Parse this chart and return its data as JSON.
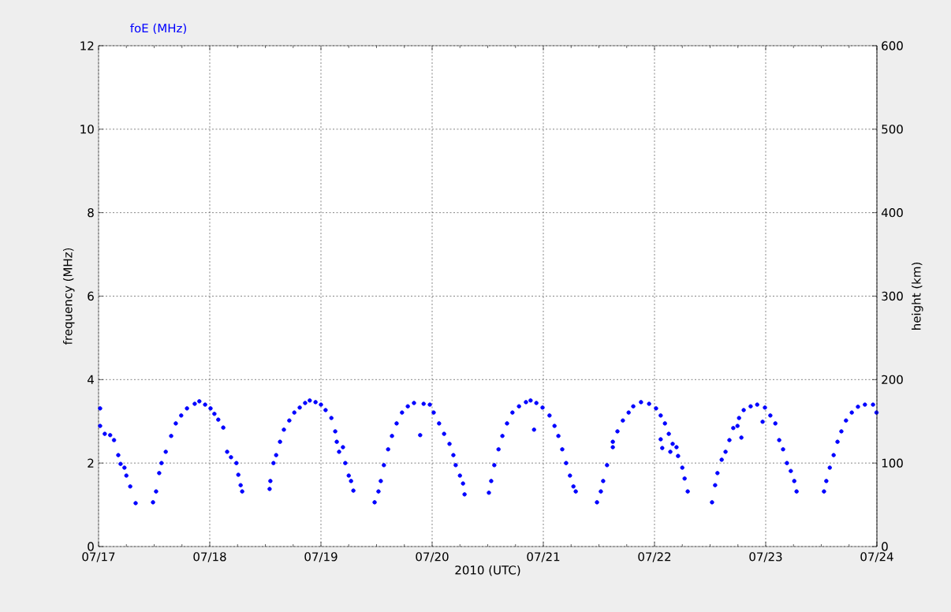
{
  "chart_data": {
    "type": "scatter",
    "xlabel": "2010 (UTC)",
    "ylabel": "frequency (MHz)",
    "y2label": "height (km)",
    "xlim": [
      "2010-07-17T00:00",
      "2010-07-24T00:00"
    ],
    "xticks": [
      {
        "value": "2010-07-17T00:00",
        "label": "07/17"
      },
      {
        "value": "2010-07-17T06:00",
        "label": null
      },
      {
        "value": "2010-07-17T12:00",
        "label": null
      },
      {
        "value": "2010-07-17T18:00",
        "label": null
      },
      {
        "value": "2010-07-18T00:00",
        "label": "07/18"
      },
      {
        "value": "2010-07-18T06:00",
        "label": null
      },
      {
        "value": "2010-07-18T12:00",
        "label": null
      },
      {
        "value": "2010-07-18T18:00",
        "label": null
      },
      {
        "value": "2010-07-19T00:00",
        "label": "07/19"
      },
      {
        "value": "2010-07-19T06:00",
        "label": null
      },
      {
        "value": "2010-07-19T12:00",
        "label": null
      },
      {
        "value": "2010-07-19T18:00",
        "label": null
      },
      {
        "value": "2010-07-20T00:00",
        "label": "07/20"
      },
      {
        "value": "2010-07-20T06:00",
        "label": null
      },
      {
        "value": "2010-07-20T12:00",
        "label": null
      },
      {
        "value": "2010-07-20T18:00",
        "label": null
      },
      {
        "value": "2010-07-21T00:00",
        "label": "07/21"
      },
      {
        "value": "2010-07-21T06:00",
        "label": null
      },
      {
        "value": "2010-07-21T12:00",
        "label": null
      },
      {
        "value": "2010-07-21T18:00",
        "label": null
      },
      {
        "value": "2010-07-22T00:00",
        "label": "07/22"
      },
      {
        "value": "2010-07-22T06:00",
        "label": null
      },
      {
        "value": "2010-07-22T12:00",
        "label": null
      },
      {
        "value": "2010-07-22T18:00",
        "label": null
      },
      {
        "value": "2010-07-23T00:00",
        "label": "07/23"
      },
      {
        "value": "2010-07-23T06:00",
        "label": null
      },
      {
        "value": "2010-07-23T12:00",
        "label": null
      },
      {
        "value": "2010-07-23T18:00",
        "label": null
      },
      {
        "value": "2010-07-24T00:00",
        "label": "07/24"
      }
    ],
    "ylim": [
      0,
      12
    ],
    "yticks": [
      0,
      2,
      4,
      6,
      8,
      10,
      12
    ],
    "y2lim": [
      0,
      600
    ],
    "y2ticks": [
      0,
      100,
      200,
      300,
      400,
      500,
      600
    ],
    "grid": true,
    "series": [
      {
        "name": "foE (MHz)",
        "color": "#0000ff",
        "x": [
          "2010-07-17T00:20",
          "2010-07-17T00:20",
          "2010-07-17T01:20",
          "2010-07-17T02:30",
          "2010-07-17T03:20",
          "2010-07-17T04:15",
          "2010-07-17T04:45",
          "2010-07-17T05:35",
          "2010-07-17T06:00",
          "2010-07-17T06:50",
          "2010-07-17T08:00",
          "2010-07-17T11:45",
          "2010-07-17T12:25",
          "2010-07-17T13:05",
          "2010-07-17T13:35",
          "2010-07-17T14:30",
          "2010-07-17T15:40",
          "2010-07-17T16:40",
          "2010-07-17T17:50",
          "2010-07-17T19:05",
          "2010-07-17T20:45",
          "2010-07-17T21:45",
          "2010-07-17T23:00",
          "2010-07-18T00:10",
          "2010-07-18T01:00",
          "2010-07-18T01:50",
          "2010-07-18T02:55",
          "2010-07-18T03:45",
          "2010-07-18T04:35",
          "2010-07-18T05:45",
          "2010-07-18T06:10",
          "2010-07-18T06:40",
          "2010-07-18T07:00",
          "2010-07-18T12:55",
          "2010-07-18T13:05",
          "2010-07-18T13:45",
          "2010-07-18T14:20",
          "2010-07-18T15:10",
          "2010-07-18T16:00",
          "2010-07-18T17:10",
          "2010-07-18T18:15",
          "2010-07-18T19:25",
          "2010-07-18T20:35",
          "2010-07-18T21:35",
          "2010-07-18T22:50",
          "2010-07-19T00:00",
          "2010-07-19T01:00",
          "2010-07-19T02:15",
          "2010-07-19T03:05",
          "2010-07-19T03:25",
          "2010-07-19T03:55",
          "2010-07-19T04:45",
          "2010-07-19T05:15",
          "2010-07-19T06:00",
          "2010-07-19T06:30",
          "2010-07-19T07:00",
          "2010-07-19T11:35",
          "2010-07-19T12:25",
          "2010-07-19T12:55",
          "2010-07-19T13:35",
          "2010-07-19T14:30",
          "2010-07-19T15:20",
          "2010-07-19T16:20",
          "2010-07-19T17:30",
          "2010-07-19T18:45",
          "2010-07-19T20:05",
          "2010-07-19T21:25",
          "2010-07-19T22:10",
          "2010-07-19T23:30",
          "2010-07-20T00:20",
          "2010-07-20T01:30",
          "2010-07-20T02:35",
          "2010-07-20T03:45",
          "2010-07-20T04:35",
          "2010-07-20T05:05",
          "2010-07-20T06:00",
          "2010-07-20T06:40",
          "2010-07-20T07:00",
          "2010-07-20T12:15",
          "2010-07-20T12:45",
          "2010-07-20T13:25",
          "2010-07-20T14:20",
          "2010-07-20T15:10",
          "2010-07-20T16:10",
          "2010-07-20T17:20",
          "2010-07-20T18:45",
          "2010-07-20T20:15",
          "2010-07-20T21:15",
          "2010-07-20T22:00",
          "2010-07-20T22:30",
          "2010-07-20T23:50",
          "2010-07-21T01:20",
          "2010-07-21T02:25",
          "2010-07-21T03:15",
          "2010-07-21T04:05",
          "2010-07-21T04:55",
          "2010-07-21T05:45",
          "2010-07-21T06:30",
          "2010-07-21T07:00",
          "2010-07-21T11:35",
          "2010-07-21T12:25",
          "2010-07-21T12:55",
          "2010-07-21T13:45",
          "2010-07-21T15:00",
          "2010-07-21T15:00",
          "2010-07-21T16:00",
          "2010-07-21T17:10",
          "2010-07-21T18:25",
          "2010-07-21T19:25",
          "2010-07-21T21:05",
          "2010-07-21T22:50",
          "2010-07-22T00:20",
          "2010-07-22T01:20",
          "2010-07-22T01:20",
          "2010-07-22T01:40",
          "2010-07-22T02:15",
          "2010-07-22T03:05",
          "2010-07-22T03:25",
          "2010-07-22T03:55",
          "2010-07-22T04:45",
          "2010-07-22T05:05",
          "2010-07-22T06:00",
          "2010-07-22T06:30",
          "2010-07-22T07:10",
          "2010-07-22T12:25",
          "2010-07-22T13:05",
          "2010-07-22T13:35",
          "2010-07-22T14:30",
          "2010-07-22T15:20",
          "2010-07-22T16:10",
          "2010-07-22T17:00",
          "2010-07-22T17:55",
          "2010-07-22T18:15",
          "2010-07-22T18:45",
          "2010-07-22T19:15",
          "2010-07-22T20:45",
          "2010-07-22T22:10",
          "2010-07-22T23:20",
          "2010-07-22T23:50",
          "2010-07-23T01:00",
          "2010-07-23T02:05",
          "2010-07-23T02:55",
          "2010-07-23T03:45",
          "2010-07-23T04:35",
          "2010-07-23T05:25",
          "2010-07-23T06:10",
          "2010-07-23T06:40",
          "2010-07-23T12:35",
          "2010-07-23T13:05",
          "2010-07-23T13:50",
          "2010-07-23T14:40",
          "2010-07-23T15:30",
          "2010-07-23T16:20",
          "2010-07-23T17:20",
          "2010-07-23T18:35",
          "2010-07-23T19:55",
          "2010-07-23T21:25",
          "2010-07-23T23:10",
          "2010-07-23T23:55"
        ],
        "values": [
          3.31,
          2.89,
          2.7,
          2.67,
          2.55,
          2.19,
          1.98,
          1.89,
          1.7,
          1.44,
          1.04,
          1.06,
          1.32,
          1.76,
          2.0,
          2.27,
          2.65,
          2.95,
          3.14,
          3.31,
          3.42,
          3.48,
          3.4,
          3.31,
          3.18,
          3.04,
          2.85,
          2.27,
          2.14,
          2.0,
          1.72,
          1.47,
          1.32,
          1.38,
          1.57,
          2.0,
          2.19,
          2.51,
          2.8,
          3.02,
          3.21,
          3.33,
          3.44,
          3.5,
          3.46,
          3.4,
          3.27,
          3.08,
          2.76,
          2.51,
          2.27,
          2.38,
          2.0,
          1.7,
          1.57,
          1.34,
          1.06,
          1.32,
          1.57,
          1.95,
          2.33,
          2.65,
          2.95,
          3.21,
          3.36,
          3.44,
          2.67,
          3.42,
          3.4,
          3.21,
          2.95,
          2.7,
          2.46,
          2.19,
          1.95,
          1.7,
          1.51,
          1.25,
          1.29,
          1.57,
          1.95,
          2.33,
          2.65,
          2.95,
          3.21,
          3.36,
          3.46,
          3.5,
          2.8,
          3.44,
          3.33,
          3.14,
          2.89,
          2.65,
          2.33,
          2.0,
          1.7,
          1.44,
          1.32,
          1.06,
          1.32,
          1.57,
          1.95,
          2.38,
          2.51,
          2.76,
          3.02,
          3.21,
          3.36,
          3.46,
          3.42,
          3.31,
          3.14,
          2.57,
          2.36,
          2.95,
          2.7,
          2.27,
          2.46,
          2.38,
          2.17,
          1.89,
          1.63,
          1.32,
          1.06,
          1.47,
          1.76,
          2.08,
          2.27,
          2.55,
          2.84,
          2.89,
          3.08,
          2.61,
          3.27,
          3.36,
          3.4,
          2.99,
          3.33,
          3.14,
          2.95,
          2.55,
          2.33,
          2.0,
          1.81,
          1.57,
          1.32,
          1.32,
          1.57,
          1.89,
          2.19,
          2.51,
          2.76,
          3.02,
          3.21,
          3.35,
          3.4,
          3.4,
          3.21
        ]
      }
    ]
  }
}
